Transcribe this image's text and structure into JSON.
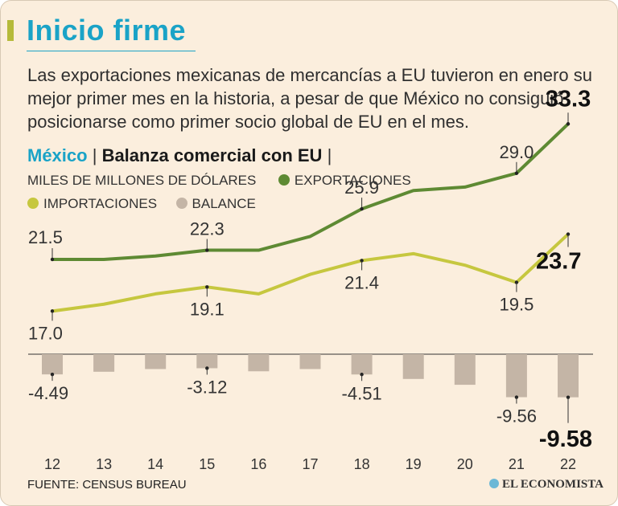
{
  "header": {
    "title": "Inicio firme",
    "description": "Las exportaciones mexicanas de mercancías a EU tuvieron en enero su mejor primer mes en la historia, a pesar de que México no consiguió posicionarse como primer socio global de EU en el mes."
  },
  "chart_header": {
    "country": "México",
    "separator": "|",
    "title": "Balanza comercial con EU",
    "units": "MILES DE MILLONES DE DÓLARES"
  },
  "legend": {
    "exports": "EXPORTACIONES",
    "imports": "IMPORTACIONES",
    "balance": "BALANCE"
  },
  "colors": {
    "exports": "#5e8a33",
    "imports": "#c6c73f",
    "balance": "#c4b5a6",
    "accent": "#1aa3c7",
    "background": "#fbeedd"
  },
  "chart_data": {
    "type": "line+bar",
    "title": "Balanza comercial con EU",
    "ylabel": "MILES DE MILLONES DE DÓLARES",
    "categories": [
      "12",
      "13",
      "14",
      "15",
      "16",
      "17",
      "18",
      "19",
      "20",
      "21",
      "22"
    ],
    "series": [
      {
        "name": "EXPORTACIONES",
        "type": "line",
        "values": [
          21.5,
          21.5,
          21.8,
          22.3,
          22.3,
          23.5,
          25.9,
          27.5,
          27.8,
          29.0,
          33.3
        ]
      },
      {
        "name": "IMPORTACIONES",
        "type": "line",
        "values": [
          17.0,
          17.6,
          18.5,
          19.1,
          18.5,
          20.2,
          21.4,
          22.0,
          21.0,
          19.5,
          23.7
        ]
      },
      {
        "name": "BALANCE",
        "type": "bar",
        "values": [
          -4.49,
          -3.9,
          -3.3,
          -3.12,
          -3.8,
          -3.3,
          -4.51,
          -5.5,
          -6.8,
          -9.56,
          -9.58
        ]
      }
    ],
    "labels": {
      "exports": [
        {
          "index": 0,
          "text": "21.5",
          "emphasis": false
        },
        {
          "index": 3,
          "text": "22.3",
          "emphasis": false
        },
        {
          "index": 6,
          "text": "25.9",
          "emphasis": false
        },
        {
          "index": 9,
          "text": "29.0",
          "emphasis": false
        },
        {
          "index": 10,
          "text": "33.3",
          "emphasis": true
        }
      ],
      "imports": [
        {
          "index": 0,
          "text": "17.0",
          "emphasis": false
        },
        {
          "index": 3,
          "text": "19.1",
          "emphasis": false
        },
        {
          "index": 6,
          "text": "21.4",
          "emphasis": false
        },
        {
          "index": 9,
          "text": "19.5",
          "emphasis": false
        },
        {
          "index": 10,
          "text": "23.7",
          "emphasis": true
        }
      ],
      "balance": [
        {
          "index": 0,
          "text": "-4.49",
          "emphasis": false
        },
        {
          "index": 3,
          "text": "-3.12",
          "emphasis": false
        },
        {
          "index": 6,
          "text": "-4.51",
          "emphasis": false
        },
        {
          "index": 9,
          "text": "-9.56",
          "emphasis": false
        },
        {
          "index": 10,
          "text": "-9.58",
          "emphasis": true
        }
      ]
    }
  },
  "footer": {
    "source": "FUENTE: CENSUS BUREAU",
    "brand": "EL ECONOMISTA"
  }
}
